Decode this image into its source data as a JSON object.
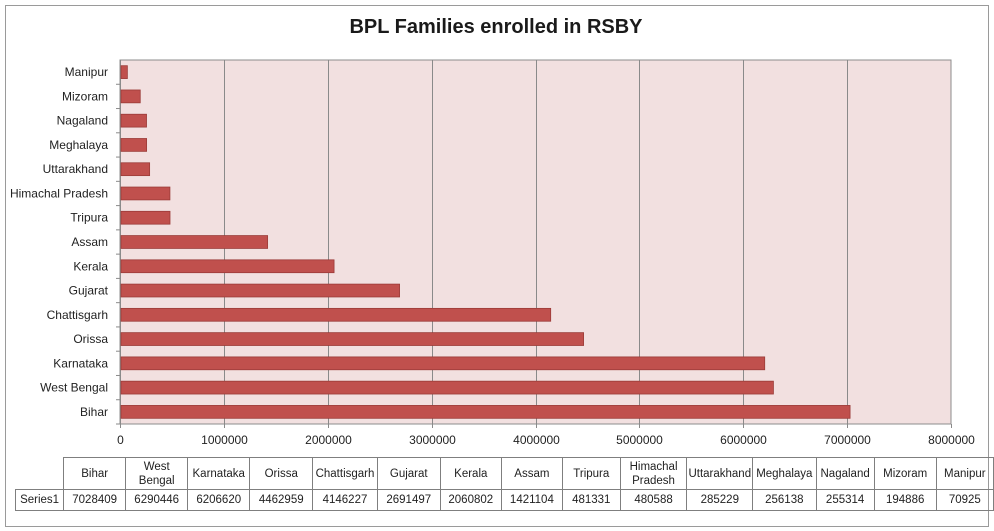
{
  "chart_data": {
    "type": "bar",
    "orientation": "horizontal",
    "title": "BPL Families enrolled in RSBY",
    "xlabel": "",
    "ylabel": "",
    "xlim": [
      0,
      8000000
    ],
    "x_ticks": [
      "0",
      "1000000",
      "2000000",
      "3000000",
      "4000000",
      "5000000",
      "6000000",
      "7000000",
      "8000000"
    ],
    "grid": "vertical lines",
    "bar_color": "#c0504d",
    "plot_background": "#f2e0e0",
    "categories_bottom_to_top": [
      "Bihar",
      "West Bengal",
      "Karnataka",
      "Orissa",
      "Chattisgarh",
      "Gujarat",
      "Kerala",
      "Assam",
      "Tripura",
      "Himachal Pradesh",
      "Uttarakhand",
      "Meghalaya",
      "Nagaland",
      "Mizoram",
      "Manipur"
    ],
    "series": [
      {
        "name": "Series1",
        "values": [
          7028409,
          6290446,
          6206620,
          4462959,
          4146227,
          2691497,
          2060802,
          1421104,
          481331,
          480588,
          285229,
          256138,
          255314,
          194886,
          70925
        ]
      }
    ],
    "data_table": {
      "header_labels": [
        "Bihar",
        "West Bengal",
        "Karnataka",
        "Orissa",
        "Chattisgarh",
        "Gujarat",
        "Kerala",
        "Assam",
        "Tripura",
        "Himachal Pradesh",
        "Uttarakhand",
        "Meghalaya",
        "Nagaland",
        "Mizoram",
        "Manipur"
      ],
      "row_label": "Series1",
      "values": [
        "7028409",
        "6290446",
        "6206620",
        "4462959",
        "4146227",
        "2691497",
        "2060802",
        "1421104",
        "481331",
        "480588",
        "285229",
        "256138",
        "255314",
        "194886",
        "70925"
      ]
    }
  }
}
